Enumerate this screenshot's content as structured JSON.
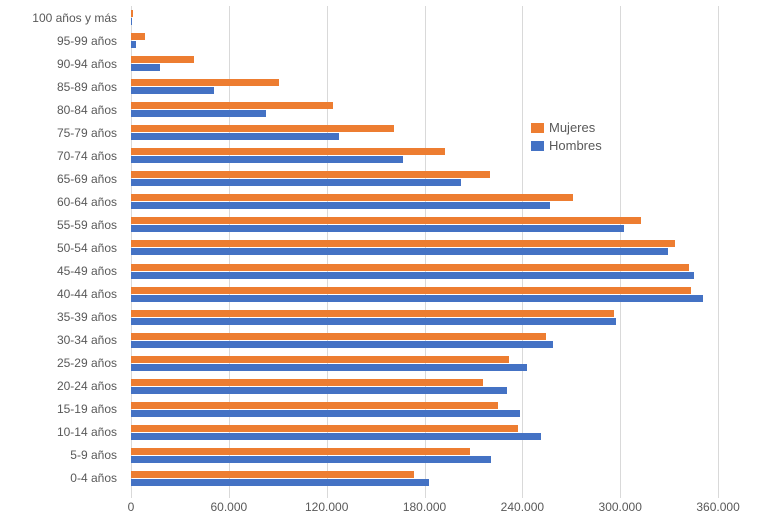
{
  "chart_data": {
    "type": "bar",
    "orientation": "horizontal",
    "title": "",
    "xlabel": "",
    "ylabel": "",
    "grid": "vertical",
    "legend_position": "middle-right",
    "categories": [
      "100 años y más",
      "95-99 años",
      "90-94 años",
      "85-89 años",
      "80-84 años",
      "75-79 años",
      "70-74 años",
      "65-69 años",
      "60-64 años",
      "55-59 años",
      "50-54 años",
      "45-49 años",
      "40-44 años",
      "35-39 años",
      "30-34 años",
      "25-29 años",
      "20-24 años",
      "15-19 años",
      "10-14 años",
      "5-9 años",
      "0-4 años"
    ],
    "series": [
      {
        "name": "Mujeres",
        "color": "#ED7D31",
        "values": [
          1500,
          8500,
          38500,
          90500,
          124000,
          161000,
          192500,
          220000,
          271000,
          313000,
          333500,
          342000,
          343500,
          296000,
          254500,
          231500,
          216000,
          225000,
          237500,
          208000,
          173500
        ]
      },
      {
        "name": "Hombres",
        "color": "#4472C4",
        "values": [
          600,
          3000,
          17500,
          51000,
          83000,
          127500,
          166500,
          202500,
          257000,
          302500,
          329000,
          345000,
          350500,
          297500,
          259000,
          243000,
          230500,
          238500,
          251500,
          220500,
          183000
        ]
      }
    ],
    "x_axis": {
      "max": 390000,
      "ticks": [
        {
          "value": 0,
          "label": "0"
        },
        {
          "value": 60000,
          "label": "60.000"
        },
        {
          "value": 120000,
          "label": "120.000"
        },
        {
          "value": 180000,
          "label": "180.000"
        },
        {
          "value": 240000,
          "label": "240.000"
        },
        {
          "value": 300000,
          "label": "300.000"
        },
        {
          "value": 360000,
          "label": "360.000"
        }
      ]
    },
    "colors": {
      "gridline": "#d9d9d9",
      "axis_text": "#595959"
    }
  }
}
